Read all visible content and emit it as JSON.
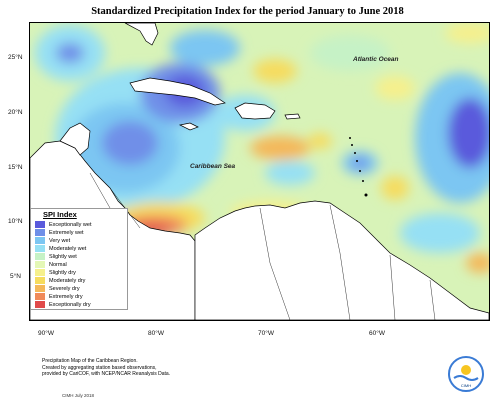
{
  "title": "Standardized Precipitation Index for the period January to June 2018",
  "labels": {
    "atlantic": "Atlantic Ocean",
    "caribbean": "Caribbean Sea"
  },
  "lat_labels": [
    "25°N",
    "20°N",
    "15°N",
    "10°N",
    "5°N"
  ],
  "lon_labels": [
    "90°W",
    "80°W",
    "70°W",
    "60°W"
  ],
  "legend": {
    "title": "SPI Index",
    "items": [
      {
        "label": "Exceptionally wet",
        "color": "#5a5adc"
      },
      {
        "label": "Extremely wet",
        "color": "#6f8fe8"
      },
      {
        "label": "Very wet",
        "color": "#7cc6f2"
      },
      {
        "label": "Moderately wet",
        "color": "#96e0f4"
      },
      {
        "label": "Slightly wet",
        "color": "#c6f2c6"
      },
      {
        "label": "Normal",
        "color": "#e4f7b6"
      },
      {
        "label": "Slightly dry",
        "color": "#f6f08c"
      },
      {
        "label": "Moderately dry",
        "color": "#f6dc5e"
      },
      {
        "label": "Severely dry",
        "color": "#f4b85a"
      },
      {
        "label": "Extremely dry",
        "color": "#f08a5a"
      },
      {
        "label": "Exceptionally dry",
        "color": "#e04a4a"
      }
    ]
  },
  "footer": {
    "line1": "Precipitation Map of the Caribbean Region.",
    "line2": "Created by aggregating station based observations,",
    "line3": "provided by CariCOF, with NCEP/NCAR Reanalysis Data.",
    "stamp": "CIMH July 2018"
  },
  "logo_text": "CIMH"
}
